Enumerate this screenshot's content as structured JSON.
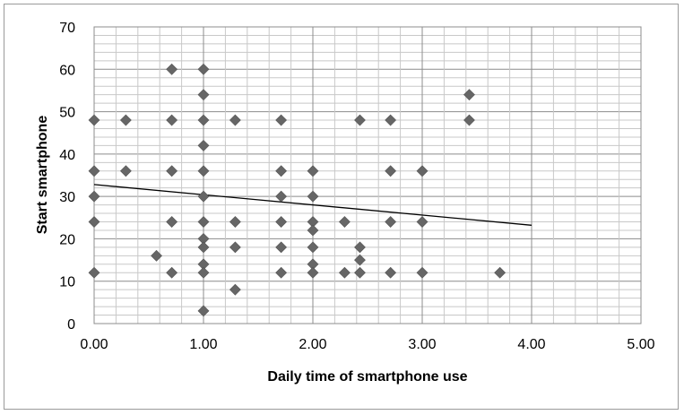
{
  "chart_data": {
    "type": "scatter",
    "title": "",
    "xlabel": "Daily time of smartphone use",
    "ylabel": "Start  smartphone",
    "xlim": [
      0,
      5
    ],
    "ylim": [
      0,
      70
    ],
    "x_ticks": [
      "0.00",
      "1.00",
      "2.00",
      "3.00",
      "4.00",
      "5.00"
    ],
    "y_ticks": [
      "0",
      "10",
      "20",
      "30",
      "40",
      "50",
      "60",
      "70"
    ],
    "grid": true,
    "legend": "none",
    "marker": "diamond",
    "marker_color": "#666666",
    "points": [
      [
        0,
        48
      ],
      [
        0,
        36
      ],
      [
        0,
        30
      ],
      [
        0,
        24
      ],
      [
        0,
        12
      ],
      [
        0.29,
        48
      ],
      [
        0.29,
        36
      ],
      [
        0.57,
        16
      ],
      [
        0.71,
        60
      ],
      [
        0.71,
        48
      ],
      [
        0.71,
        36
      ],
      [
        0.71,
        24
      ],
      [
        0.71,
        12
      ],
      [
        1,
        60
      ],
      [
        1,
        54
      ],
      [
        1,
        48
      ],
      [
        1,
        42
      ],
      [
        1,
        36
      ],
      [
        1,
        30
      ],
      [
        1,
        24
      ],
      [
        1,
        20
      ],
      [
        1,
        18
      ],
      [
        1,
        14
      ],
      [
        1,
        12
      ],
      [
        1,
        3
      ],
      [
        1.29,
        48
      ],
      [
        1.29,
        24
      ],
      [
        1.29,
        18
      ],
      [
        1.29,
        8
      ],
      [
        1.71,
        48
      ],
      [
        1.71,
        36
      ],
      [
        1.71,
        30
      ],
      [
        1.71,
        24
      ],
      [
        1.71,
        18
      ],
      [
        1.71,
        12
      ],
      [
        2,
        36
      ],
      [
        2,
        30
      ],
      [
        2,
        24
      ],
      [
        2,
        22
      ],
      [
        2,
        18
      ],
      [
        2,
        14
      ],
      [
        2,
        12
      ],
      [
        2.29,
        24
      ],
      [
        2.29,
        12
      ],
      [
        2.43,
        48
      ],
      [
        2.43,
        18
      ],
      [
        2.43,
        15
      ],
      [
        2.43,
        12
      ],
      [
        2.71,
        48
      ],
      [
        2.71,
        36
      ],
      [
        2.71,
        24
      ],
      [
        2.71,
        12
      ],
      [
        3,
        36
      ],
      [
        3,
        24
      ],
      [
        3,
        12
      ],
      [
        3.43,
        54
      ],
      [
        3.43,
        48
      ],
      [
        3.71,
        12
      ]
    ],
    "trendline": {
      "x": [
        0,
        4
      ],
      "y": [
        32.8,
        23.2
      ],
      "color": "#000000"
    }
  }
}
